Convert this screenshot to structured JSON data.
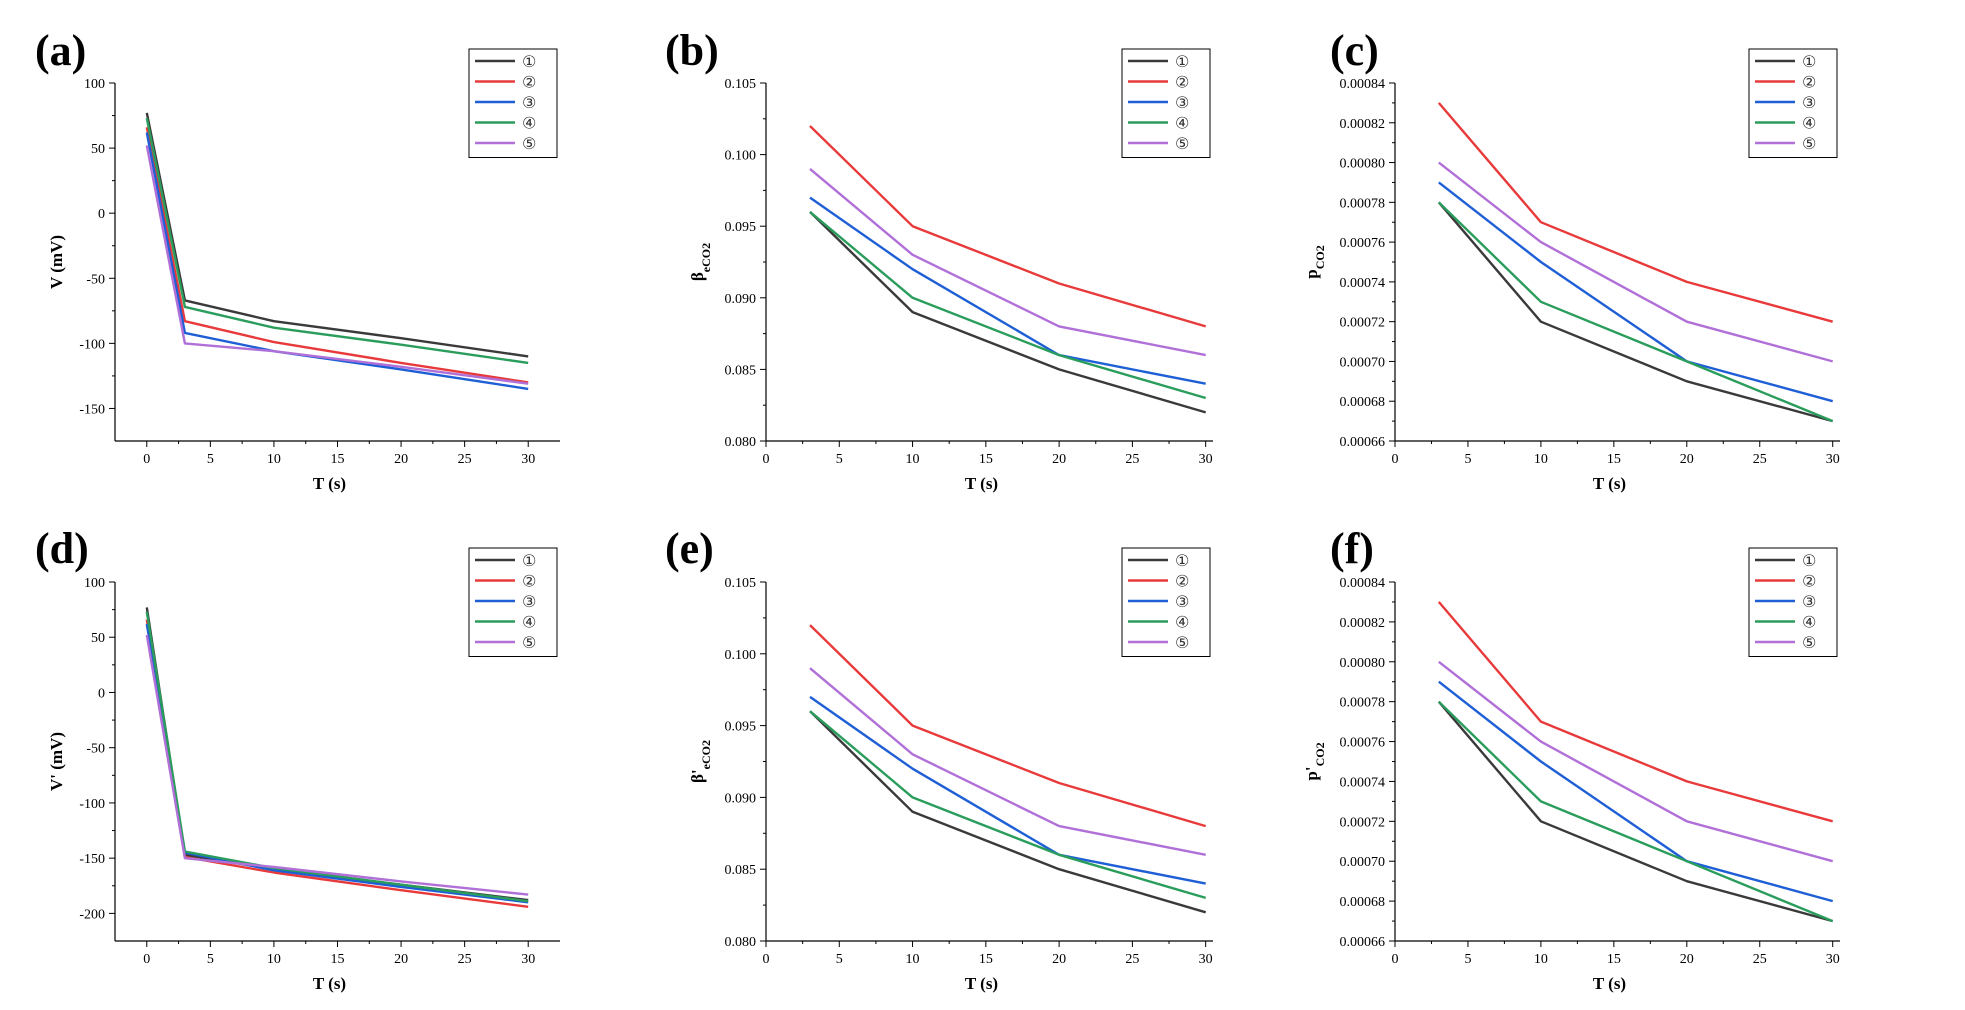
{
  "colors": {
    "s1": "#3a3a3a",
    "s2": "#e83a3a",
    "s3": "#1f5fd6",
    "s4": "#2a9d5c",
    "s5": "#b070d8"
  },
  "chart_data": [
    {
      "type": "line",
      "panel": "(a)",
      "ylabel": "V (mV)",
      "xlabel": "T (s)",
      "xlim": [
        -2.5,
        32.5
      ],
      "ylim": [
        -175,
        100
      ],
      "xticks": [
        0,
        5,
        10,
        15,
        20,
        25,
        30
      ],
      "yticks": [
        100,
        50,
        0,
        -50,
        -100,
        -150
      ],
      "ytick_labels": [
        "100",
        "50",
        "0",
        "-50",
        "-100",
        "-150"
      ],
      "legend": "top-right",
      "x": [
        0,
        3,
        10,
        20,
        30
      ],
      "series": [
        {
          "name": "①",
          "values": [
            77,
            -67,
            -83,
            -96,
            -110
          ]
        },
        {
          "name": "②",
          "values": [
            66,
            -83,
            -99,
            -115,
            -130
          ]
        },
        {
          "name": "③",
          "values": [
            62,
            -92,
            -106,
            -120,
            -135
          ]
        },
        {
          "name": "④",
          "values": [
            73,
            -72,
            -88,
            -101,
            -115
          ]
        },
        {
          "name": "⑤",
          "values": [
            52,
            -100,
            -106,
            -118,
            -131
          ]
        }
      ]
    },
    {
      "type": "line",
      "panel": "(b)",
      "ylabel": "β",
      "ylabel_sub": "eCO2",
      "xlabel": "T (s)",
      "xlim": [
        0,
        30.5
      ],
      "ylim": [
        0.08,
        0.105
      ],
      "xticks": [
        0,
        5,
        10,
        15,
        20,
        25,
        30
      ],
      "yticks": [
        0.08,
        0.085,
        0.09,
        0.095,
        0.1,
        0.105
      ],
      "ytick_labels": [
        "0.080",
        "0.085",
        "0.090",
        "0.095",
        "0.100",
        "0.105"
      ],
      "legend": "top-right",
      "x": [
        3,
        10,
        20,
        30
      ],
      "series": [
        {
          "name": "①",
          "values": [
            0.096,
            0.089,
            0.085,
            0.082
          ]
        },
        {
          "name": "②",
          "values": [
            0.102,
            0.095,
            0.091,
            0.088
          ]
        },
        {
          "name": "③",
          "values": [
            0.097,
            0.092,
            0.086,
            0.084
          ]
        },
        {
          "name": "④",
          "values": [
            0.096,
            0.09,
            0.086,
            0.083
          ]
        },
        {
          "name": "⑤",
          "values": [
            0.099,
            0.093,
            0.088,
            0.086
          ]
        }
      ]
    },
    {
      "type": "line",
      "panel": "(c)",
      "ylabel": "p",
      "ylabel_sub": "CO2",
      "xlabel": "T (s)",
      "xlim": [
        0,
        30.5
      ],
      "ylim": [
        0.00066,
        0.00084
      ],
      "xticks": [
        0,
        5,
        10,
        15,
        20,
        25,
        30
      ],
      "yticks": [
        0.00066,
        0.00068,
        0.0007,
        0.00072,
        0.00074,
        0.00076,
        0.00078,
        0.0008,
        0.00082,
        0.00084
      ],
      "ytick_labels": [
        "0.00066",
        "0.00068",
        "0.00070",
        "0.00072",
        "0.00074",
        "0.00076",
        "0.00078",
        "0.00080",
        "0.00082",
        "0.00084"
      ],
      "legend": "top-right",
      "x": [
        3,
        10,
        20,
        30
      ],
      "series": [
        {
          "name": "①",
          "values": [
            0.00078,
            0.00072,
            0.00069,
            0.00067
          ]
        },
        {
          "name": "②",
          "values": [
            0.00083,
            0.00077,
            0.00074,
            0.00072
          ]
        },
        {
          "name": "③",
          "values": [
            0.00079,
            0.00075,
            0.0007,
            0.00068
          ]
        },
        {
          "name": "④",
          "values": [
            0.00078,
            0.00073,
            0.0007,
            0.00067
          ]
        },
        {
          "name": "⑤",
          "values": [
            0.0008,
            0.00076,
            0.00072,
            0.0007
          ]
        }
      ]
    },
    {
      "type": "line",
      "panel": "(d)",
      "ylabel": "V' (mV)",
      "xlabel": "T (s)",
      "xlim": [
        -2.5,
        32.5
      ],
      "ylim": [
        -225,
        100
      ],
      "xticks": [
        0,
        5,
        10,
        15,
        20,
        25,
        30
      ],
      "yticks": [
        100,
        50,
        0,
        -50,
        -100,
        -150,
        -200
      ],
      "ytick_labels": [
        "100",
        "50",
        "0",
        "-50",
        "-100",
        "-150",
        "-200"
      ],
      "legend": "top-right",
      "x": [
        0,
        3,
        10,
        20,
        30
      ],
      "series": [
        {
          "name": "①",
          "values": [
            77,
            -147,
            -160,
            -174,
            -188
          ]
        },
        {
          "name": "②",
          "values": [
            66,
            -149,
            -163,
            -179,
            -194
          ]
        },
        {
          "name": "③",
          "values": [
            62,
            -145,
            -161,
            -176,
            -190
          ]
        },
        {
          "name": "④",
          "values": [
            73,
            -144,
            -159,
            -174,
            -189
          ]
        },
        {
          "name": "⑤",
          "values": [
            52,
            -150,
            -158,
            -171,
            -183
          ]
        }
      ]
    },
    {
      "type": "line",
      "panel": "(e)",
      "ylabel": "β'",
      "ylabel_sub": "eCO2",
      "xlabel": "T (s)",
      "xlim": [
        0,
        30.5
      ],
      "ylim": [
        0.08,
        0.105
      ],
      "xticks": [
        0,
        5,
        10,
        15,
        20,
        25,
        30
      ],
      "yticks": [
        0.08,
        0.085,
        0.09,
        0.095,
        0.1,
        0.105
      ],
      "ytick_labels": [
        "0.080",
        "0.085",
        "0.090",
        "0.095",
        "0.100",
        "0.105"
      ],
      "legend": "top-right",
      "x": [
        3,
        10,
        20,
        30
      ],
      "series": [
        {
          "name": "①",
          "values": [
            0.096,
            0.089,
            0.085,
            0.082
          ]
        },
        {
          "name": "②",
          "values": [
            0.102,
            0.095,
            0.091,
            0.088
          ]
        },
        {
          "name": "③",
          "values": [
            0.097,
            0.092,
            0.086,
            0.084
          ]
        },
        {
          "name": "④",
          "values": [
            0.096,
            0.09,
            0.086,
            0.083
          ]
        },
        {
          "name": "⑤",
          "values": [
            0.099,
            0.093,
            0.088,
            0.086
          ]
        }
      ]
    },
    {
      "type": "line",
      "panel": "(f)",
      "ylabel": "p'",
      "ylabel_sub": "CO2",
      "xlabel": "T (s)",
      "xlim": [
        0,
        30.5
      ],
      "ylim": [
        0.00066,
        0.00084
      ],
      "xticks": [
        0,
        5,
        10,
        15,
        20,
        25,
        30
      ],
      "yticks": [
        0.00066,
        0.00068,
        0.0007,
        0.00072,
        0.00074,
        0.00076,
        0.00078,
        0.0008,
        0.00082,
        0.00084
      ],
      "ytick_labels": [
        "0.00066",
        "0.00068",
        "0.00070",
        "0.00072",
        "0.00074",
        "0.00076",
        "0.00078",
        "0.00080",
        "0.00082",
        "0.00084"
      ],
      "legend": "top-right",
      "x": [
        3,
        10,
        20,
        30
      ],
      "series": [
        {
          "name": "①",
          "values": [
            0.00078,
            0.00072,
            0.00069,
            0.00067
          ]
        },
        {
          "name": "②",
          "values": [
            0.00083,
            0.00077,
            0.00074,
            0.00072
          ]
        },
        {
          "name": "③",
          "values": [
            0.00079,
            0.00075,
            0.0007,
            0.00068
          ]
        },
        {
          "name": "④",
          "values": [
            0.00078,
            0.00073,
            0.0007,
            0.00067
          ]
        },
        {
          "name": "⑤",
          "values": [
            0.0008,
            0.00076,
            0.00072,
            0.0007
          ]
        }
      ]
    }
  ]
}
